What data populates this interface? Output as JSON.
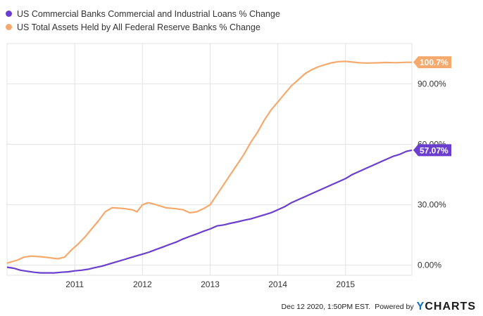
{
  "legend": [
    {
      "label": "US Commercial Banks Commercial and Industrial Loans % Change",
      "color": "#6a3fcf"
    },
    {
      "label": "US Total Assets Held by All Federal Reserve Banks % Change",
      "color": "#f6a96c"
    }
  ],
  "footer": {
    "timestamp": "Dec 12 2020, 1:50PM EST.",
    "powered_by": "Powered by",
    "brand_y": "Y",
    "brand_rest": "CHARTS"
  },
  "chart_data": {
    "type": "line",
    "xlim": [
      2010.0,
      2015.98
    ],
    "ylim": [
      -5,
      110
    ],
    "x_ticks": [
      {
        "value": 2011,
        "label": "2011"
      },
      {
        "value": 2012,
        "label": "2012"
      },
      {
        "value": 2013,
        "label": "2013"
      },
      {
        "value": 2014,
        "label": "2014"
      },
      {
        "value": 2015,
        "label": "2015"
      }
    ],
    "y_ticks": [
      {
        "value": 0,
        "label": "0.00%"
      },
      {
        "value": 30,
        "label": "30.00%"
      },
      {
        "value": 60,
        "label": "60.00%"
      },
      {
        "value": 90,
        "label": "90.00%"
      }
    ],
    "grid": true,
    "series": [
      {
        "name": "US Total Assets Held by All Federal Reserve Banks % Change",
        "color": "#f6a96c",
        "end_label": "100.7%",
        "points": [
          [
            2010.0,
            1.0
          ],
          [
            2010.05,
            1.5
          ],
          [
            2010.15,
            2.5
          ],
          [
            2010.25,
            4.0
          ],
          [
            2010.35,
            4.5
          ],
          [
            2010.5,
            4.2
          ],
          [
            2010.6,
            3.8
          ],
          [
            2010.75,
            3.2
          ],
          [
            2010.85,
            4.0
          ],
          [
            2010.95,
            7.5
          ],
          [
            2011.05,
            10.5
          ],
          [
            2011.15,
            14.0
          ],
          [
            2011.25,
            18.0
          ],
          [
            2011.35,
            22.0
          ],
          [
            2011.45,
            26.5
          ],
          [
            2011.55,
            28.5
          ],
          [
            2011.65,
            28.3
          ],
          [
            2011.75,
            28.0
          ],
          [
            2011.85,
            27.5
          ],
          [
            2011.92,
            26.5
          ],
          [
            2012.0,
            30.0
          ],
          [
            2012.08,
            31.0
          ],
          [
            2012.15,
            30.5
          ],
          [
            2012.25,
            29.5
          ],
          [
            2012.35,
            28.5
          ],
          [
            2012.5,
            28.0
          ],
          [
            2012.6,
            27.5
          ],
          [
            2012.7,
            26.0
          ],
          [
            2012.8,
            26.5
          ],
          [
            2012.9,
            28.0
          ],
          [
            2013.0,
            30.0
          ],
          [
            2013.1,
            35.0
          ],
          [
            2013.2,
            40.0
          ],
          [
            2013.3,
            45.0
          ],
          [
            2013.4,
            50.0
          ],
          [
            2013.5,
            55.0
          ],
          [
            2013.6,
            61.0
          ],
          [
            2013.7,
            66.0
          ],
          [
            2013.8,
            72.0
          ],
          [
            2013.9,
            77.0
          ],
          [
            2014.0,
            81.0
          ],
          [
            2014.1,
            85.0
          ],
          [
            2014.2,
            89.0
          ],
          [
            2014.3,
            92.0
          ],
          [
            2014.4,
            95.0
          ],
          [
            2014.5,
            97.0
          ],
          [
            2014.6,
            98.5
          ],
          [
            2014.7,
            99.5
          ],
          [
            2014.8,
            100.5
          ],
          [
            2014.9,
            101.0
          ],
          [
            2015.0,
            101.2
          ],
          [
            2015.1,
            100.8
          ],
          [
            2015.2,
            100.5
          ],
          [
            2015.3,
            100.3
          ],
          [
            2015.45,
            100.4
          ],
          [
            2015.6,
            100.6
          ],
          [
            2015.75,
            100.5
          ],
          [
            2015.9,
            100.7
          ],
          [
            2015.98,
            100.7
          ]
        ]
      },
      {
        "name": "US Commercial Banks Commercial and Industrial Loans % Change",
        "color": "#6a3fcf",
        "end_label": "57.07%",
        "points": [
          [
            2010.0,
            -1.0
          ],
          [
            2010.1,
            -1.5
          ],
          [
            2010.2,
            -2.5
          ],
          [
            2010.3,
            -3.0
          ],
          [
            2010.4,
            -3.5
          ],
          [
            2010.5,
            -3.8
          ],
          [
            2010.6,
            -3.8
          ],
          [
            2010.7,
            -3.8
          ],
          [
            2010.8,
            -3.5
          ],
          [
            2010.9,
            -3.3
          ],
          [
            2011.0,
            -2.8
          ],
          [
            2011.1,
            -2.5
          ],
          [
            2011.2,
            -2.0
          ],
          [
            2011.3,
            -1.2
          ],
          [
            2011.4,
            -0.5
          ],
          [
            2011.5,
            0.5
          ],
          [
            2011.6,
            1.5
          ],
          [
            2011.7,
            2.5
          ],
          [
            2011.8,
            3.5
          ],
          [
            2011.9,
            4.5
          ],
          [
            2012.0,
            5.5
          ],
          [
            2012.1,
            6.5
          ],
          [
            2012.2,
            7.8
          ],
          [
            2012.3,
            9.0
          ],
          [
            2012.4,
            10.3
          ],
          [
            2012.5,
            11.5
          ],
          [
            2012.6,
            13.0
          ],
          [
            2012.7,
            14.3
          ],
          [
            2012.8,
            15.5
          ],
          [
            2012.9,
            16.8
          ],
          [
            2013.0,
            18.0
          ],
          [
            2013.1,
            19.5
          ],
          [
            2013.2,
            20.0
          ],
          [
            2013.3,
            20.8
          ],
          [
            2013.4,
            21.5
          ],
          [
            2013.5,
            22.3
          ],
          [
            2013.6,
            23.0
          ],
          [
            2013.7,
            24.0
          ],
          [
            2013.8,
            25.0
          ],
          [
            2013.9,
            26.0
          ],
          [
            2014.0,
            27.5
          ],
          [
            2014.1,
            29.0
          ],
          [
            2014.2,
            31.0
          ],
          [
            2014.3,
            32.5
          ],
          [
            2014.4,
            34.0
          ],
          [
            2014.5,
            35.5
          ],
          [
            2014.6,
            37.0
          ],
          [
            2014.7,
            38.5
          ],
          [
            2014.8,
            40.0
          ],
          [
            2014.9,
            41.5
          ],
          [
            2015.0,
            43.0
          ],
          [
            2015.1,
            45.0
          ],
          [
            2015.2,
            46.5
          ],
          [
            2015.3,
            48.0
          ],
          [
            2015.4,
            49.5
          ],
          [
            2015.5,
            51.0
          ],
          [
            2015.6,
            52.5
          ],
          [
            2015.7,
            54.0
          ],
          [
            2015.8,
            55.0
          ],
          [
            2015.9,
            56.5
          ],
          [
            2015.98,
            57.07
          ]
        ]
      }
    ]
  }
}
